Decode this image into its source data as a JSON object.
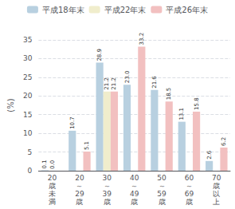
{
  "chart_data": {
    "type": "bar",
    "ylabel": "(%)",
    "categories": [
      "20\n歳\n未\n満",
      "20\n～\n29\n歳",
      "30\n～\n39\n歳",
      "40\n～\n49\n歳",
      "50\n～\n59\n歳",
      "60\n～\n69\n歳",
      "70\n歳\n以\n上"
    ],
    "series": [
      {
        "name": "平成18年末",
        "color": "#b8d0e0",
        "values": [
          0.1,
          10.7,
          28.9,
          23.0,
          21.6,
          13.1,
          2.6
        ],
        "value_labels": [
          "0.1",
          "10.7",
          "28.9",
          "23.0",
          "21.6",
          "13.1",
          "2.6"
        ]
      },
      {
        "name": "平成22年末",
        "color": "#f0edcc",
        "values": [
          0.0,
          0.0,
          21.2,
          0.0,
          0.0,
          0.0,
          0.0
        ],
        "value_labels": [
          "0.0",
          null,
          "21.2",
          null,
          null,
          null,
          null
        ]
      },
      {
        "name": "平成26年末",
        "color": "#f2c0c0",
        "values": [
          0.0,
          5.1,
          21.2,
          33.2,
          18.5,
          15.8,
          6.2
        ],
        "value_labels": [
          null,
          "5.1",
          "21.2",
          "33.2",
          "18.5",
          "15.8",
          "6.2"
        ]
      }
    ],
    "ylim": [
      0,
      35
    ],
    "yticks": [
      0,
      5,
      10,
      15,
      20,
      25,
      30,
      35
    ],
    "grid": true,
    "legend": "top",
    "data_labels": true
  }
}
